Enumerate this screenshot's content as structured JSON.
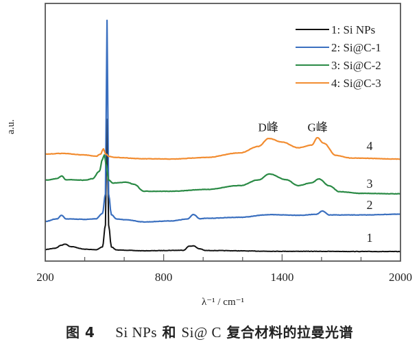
{
  "chart_data": {
    "type": "line",
    "title": "",
    "xlabel": "λ⁻¹ / cm⁻¹",
    "ylabel": "a.u.",
    "xlim": [
      200,
      2000
    ],
    "ylim": [
      0,
      100
    ],
    "x_ticks": [
      200,
      800,
      1400,
      2000
    ],
    "x_tick_labels": [
      "200",
      "800",
      "1400",
      "2000"
    ],
    "x_minor_step": 200,
    "grid": false,
    "legend_position": "top-right",
    "series": [
      {
        "name": "1: Si NPs",
        "label": "1",
        "color": "#111111",
        "points": [
          [
            200,
            4.5
          ],
          [
            250,
            5.0
          ],
          [
            283,
            6.2
          ],
          [
            301,
            6.6
          ],
          [
            330,
            5.6
          ],
          [
            402,
            4.6
          ],
          [
            457,
            4.4
          ],
          [
            490,
            5.5
          ],
          [
            505,
            14
          ],
          [
            513,
            55
          ],
          [
            521,
            14
          ],
          [
            535,
            5.5
          ],
          [
            561,
            4.3
          ],
          [
            700,
            4.0
          ],
          [
            900,
            4.2
          ],
          [
            930,
            5.8
          ],
          [
            951,
            5.9
          ],
          [
            980,
            4.8
          ],
          [
            1013,
            4.1
          ],
          [
            1400,
            3.8
          ],
          [
            2000,
            3.7
          ]
        ]
      },
      {
        "name": "2: Si@C-1",
        "label": "2",
        "color": "#3a6fbf",
        "points": [
          [
            200,
            15.4
          ],
          [
            260,
            16.4
          ],
          [
            283,
            17.8
          ],
          [
            305,
            16.4
          ],
          [
            402,
            16.2
          ],
          [
            457,
            16.4
          ],
          [
            490,
            18.5
          ],
          [
            505,
            26
          ],
          [
            513,
            93.4
          ],
          [
            521,
            26
          ],
          [
            535,
            18
          ],
          [
            561,
            16.3
          ],
          [
            613,
            16.0
          ],
          [
            700,
            15.2
          ],
          [
            839,
            15.6
          ],
          [
            920,
            16.3
          ],
          [
            951,
            18.1
          ],
          [
            985,
            16.4
          ],
          [
            1013,
            16.6
          ],
          [
            1187,
            17.0
          ],
          [
            1333,
            18.0
          ],
          [
            1500,
            17.8
          ],
          [
            1575,
            18.2
          ],
          [
            1604,
            19.4
          ],
          [
            1640,
            17.9
          ],
          [
            1800,
            17.9
          ],
          [
            2000,
            18.2
          ]
        ]
      },
      {
        "name": "3: Si@C-2",
        "label": "3",
        "color": "#2a8a45",
        "points": [
          [
            200,
            31.4
          ],
          [
            260,
            32.0
          ],
          [
            283,
            33.0
          ],
          [
            305,
            31.6
          ],
          [
            402,
            31.4
          ],
          [
            440,
            32.0
          ],
          [
            474,
            34.8
          ],
          [
            490,
            39.5
          ],
          [
            499,
            41.2
          ],
          [
            510,
            37
          ],
          [
            520,
            31.5
          ],
          [
            544,
            30.3
          ],
          [
            613,
            30.6
          ],
          [
            650,
            29.8
          ],
          [
            700,
            27.1
          ],
          [
            839,
            27.1
          ],
          [
            1013,
            27.8
          ],
          [
            1187,
            29.3
          ],
          [
            1280,
            31.5
          ],
          [
            1336,
            33.8
          ],
          [
            1420,
            31.6
          ],
          [
            1482,
            29.3
          ],
          [
            1550,
            30.4
          ],
          [
            1586,
            31.9
          ],
          [
            1640,
            29.2
          ],
          [
            1691,
            26.9
          ],
          [
            1800,
            26.3
          ],
          [
            2000,
            26.1
          ]
        ]
      },
      {
        "name": "4: Si@C-3",
        "label": "4",
        "color": "#f28c30",
        "points": [
          [
            200,
            41.5
          ],
          [
            283,
            41.8
          ],
          [
            400,
            41.2
          ],
          [
            457,
            40.7
          ],
          [
            480,
            41.5
          ],
          [
            495,
            43.6
          ],
          [
            505,
            41.6
          ],
          [
            525,
            40.6
          ],
          [
            561,
            40.2
          ],
          [
            700,
            39.7
          ],
          [
            839,
            39.6
          ],
          [
            1013,
            40.2
          ],
          [
            1187,
            42.0
          ],
          [
            1280,
            44.5
          ],
          [
            1333,
            47.6
          ],
          [
            1400,
            46.2
          ],
          [
            1482,
            44.0
          ],
          [
            1550,
            45.0
          ],
          [
            1579,
            47.9
          ],
          [
            1610,
            45.8
          ],
          [
            1673,
            41.0
          ],
          [
            1750,
            40.0
          ],
          [
            2000,
            39.6
          ]
        ]
      }
    ],
    "annotations": [
      {
        "text": "D峰",
        "x": 1330,
        "y": 52
      },
      {
        "text": "G峰",
        "x": 1580,
        "y": 52
      }
    ]
  },
  "caption": {
    "prefix": "图 4",
    "en1": "Si NPs",
    "zh1": "和",
    "en2": "Si@ C",
    "zh2": "复合材料的拉曼光谱"
  }
}
